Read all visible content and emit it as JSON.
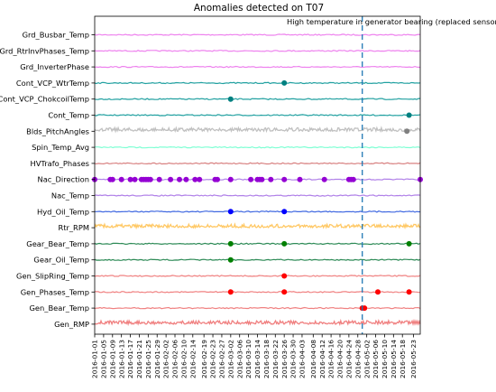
{
  "chart_data": {
    "type": "scatter",
    "title": "Anomalies detected on T07",
    "xlabel": "",
    "ylabel": "",
    "xlim": [
      "2016-01-01",
      "2016-05-26"
    ],
    "grid": false,
    "legend": "none",
    "x_ticks": [
      "2016-01-01",
      "2016-01-05",
      "2016-01-09",
      "2016-01-13",
      "2016-01-17",
      "2016-01-21",
      "2016-01-25",
      "2016-01-29",
      "2016-02-02",
      "2016-02-06",
      "2016-02-10",
      "2016-02-14",
      "2016-02-19",
      "2016-02-23",
      "2016-02-27",
      "2016-03-02",
      "2016-03-06",
      "2016-03-10",
      "2016-03-14",
      "2016-03-18",
      "2016-03-22",
      "2016-03-26",
      "2016-03-30",
      "2016-04-03",
      "2016-04-08",
      "2016-04-12",
      "2016-04-16",
      "2016-04-20",
      "2016-04-24",
      "2016-04-28",
      "2016-05-02",
      "2016-05-06",
      "2016-05-10",
      "2016-05-14",
      "2016-05-18",
      "2016-05-23"
    ],
    "series": [
      {
        "name": "Grd_Busbar_Temp",
        "color": "#ee82ee",
        "noise": "low",
        "anomalies": []
      },
      {
        "name": "Grd_RtrInvPhases_Temp",
        "color": "#ee82ee",
        "noise": "low",
        "anomalies": []
      },
      {
        "name": "Grd_InverterPhase",
        "color": "#ee82ee",
        "noise": "low",
        "anomalies": []
      },
      {
        "name": "Cont_VCP_WtrTemp",
        "color": "#20a0a0",
        "noise": "low",
        "anomalies": [
          "2016-03-26"
        ]
      },
      {
        "name": "Cont_VCP_ChokcoilTemp",
        "color": "#20a0a0",
        "noise": "low",
        "anomalies": [
          "2016-03-02"
        ]
      },
      {
        "name": "Cont_Temp",
        "color": "#20a0a0",
        "noise": "low",
        "anomalies": [
          "2016-05-21"
        ]
      },
      {
        "name": "Blds_PitchAngles",
        "color": "#c0c0c0",
        "noise": "high",
        "anomalies": [
          "2016-05-20"
        ]
      },
      {
        "name": "Spin_Temp_Avg",
        "color": "#7fffd4",
        "noise": "low",
        "anomalies": []
      },
      {
        "name": "HVTrafo_Phases",
        "color": "#d88080",
        "noise": "low",
        "anomalies": []
      },
      {
        "name": "Nac_Direction",
        "color": "#b080e8",
        "noise": "low",
        "anomalies": [
          "2016-01-01",
          "2016-01-08",
          "2016-01-09",
          "2016-01-13",
          "2016-01-17",
          "2016-01-19",
          "2016-01-22",
          "2016-01-23",
          "2016-01-24",
          "2016-01-25",
          "2016-01-26",
          "2016-01-30",
          "2016-02-04",
          "2016-02-08",
          "2016-02-11",
          "2016-02-15",
          "2016-02-17",
          "2016-02-24",
          "2016-02-25",
          "2016-03-02",
          "2016-03-11",
          "2016-03-14",
          "2016-03-15",
          "2016-03-16",
          "2016-03-20",
          "2016-03-26",
          "2016-04-02",
          "2016-04-13",
          "2016-04-24",
          "2016-04-25",
          "2016-04-26",
          "2016-05-26"
        ]
      },
      {
        "name": "Nac_Temp",
        "color": "#b080e8",
        "noise": "low",
        "anomalies": []
      },
      {
        "name": "Hyd_Oil_Temp",
        "color": "#4169e1",
        "noise": "low",
        "anomalies": [
          "2016-03-02",
          "2016-03-26"
        ]
      },
      {
        "name": "Rtr_RPM",
        "color": "#ffc864",
        "noise": "high",
        "anomalies": []
      },
      {
        "name": "Gear_Bear_Temp",
        "color": "#2e8b57",
        "noise": "low",
        "anomalies": [
          "2016-03-02",
          "2016-03-26",
          "2016-05-21"
        ]
      },
      {
        "name": "Gear_Oil_Temp",
        "color": "#2e8b57",
        "noise": "low",
        "anomalies": [
          "2016-03-02"
        ]
      },
      {
        "name": "Gen_SlipRing_Temp",
        "color": "#f08080",
        "noise": "low",
        "anomalies": [
          "2016-03-26"
        ]
      },
      {
        "name": "Gen_Phases_Temp",
        "color": "#f08080",
        "noise": "low",
        "anomalies": [
          "2016-03-02",
          "2016-03-26",
          "2016-05-07",
          "2016-05-21"
        ]
      },
      {
        "name": "Gen_Bear_Temp",
        "color": "#f08080",
        "noise": "low",
        "anomalies": [
          "2016-04-30",
          "2016-05-01"
        ]
      },
      {
        "name": "Gen_RMP",
        "color": "#f08080",
        "noise": "high",
        "anomalies": []
      }
    ],
    "marker_colors": {
      "Cont_VCP_WtrTemp": "#008080",
      "Cont_VCP_ChokcoilTemp": "#008080",
      "Cont_Temp": "#008080",
      "Blds_PitchAngles": "#808080",
      "Nac_Direction": "#9400d3",
      "Hyd_Oil_Temp": "#0000ff",
      "Gear_Bear_Temp": "#008000",
      "Gear_Oil_Temp": "#008000",
      "Gen_SlipRing_Temp": "#ff0000",
      "Gen_Phases_Temp": "#ff0000",
      "Gen_Bear_Temp": "#ff0000"
    },
    "event_line": {
      "date": "2016-04-30",
      "color": "#1f77b4",
      "style": "dashed",
      "label": "High temperature in generator bearing (replaced sensor)"
    }
  }
}
